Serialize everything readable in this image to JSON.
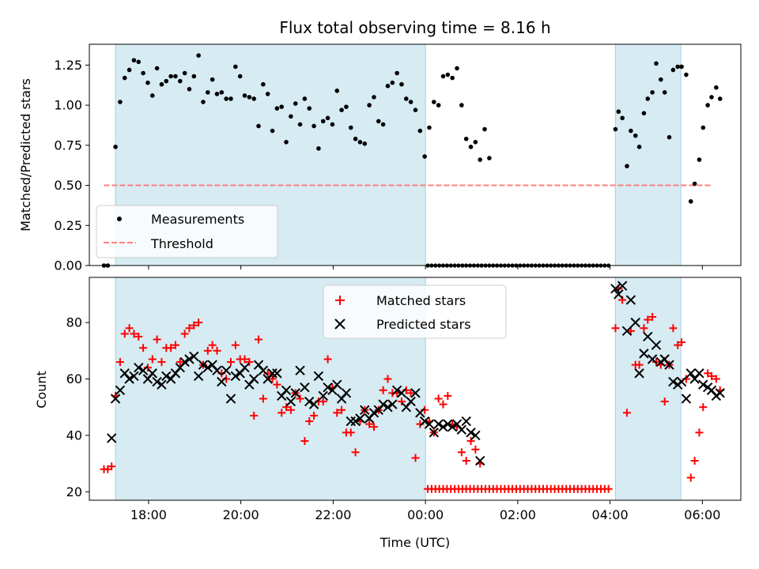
{
  "chart_data": [
    {
      "type": "scatter",
      "title": "Flux total observing time = 8.16 h",
      "xlabel": "",
      "ylabel": "Matched/Predicted stars",
      "xlim": [
        "16:43",
        "06:50"
      ],
      "ylim": [
        0,
        1.38
      ],
      "yticks": [
        "0.00",
        "0.25",
        "0.50",
        "0.75",
        "1.00",
        "1.25"
      ],
      "grid": false,
      "shaded_intervals": [
        [
          "17:17",
          "00:00"
        ],
        [
          "04:07",
          "05:32"
        ]
      ],
      "legend": {
        "position": "lower-left",
        "entries": [
          "Measurements",
          "Threshold"
        ]
      },
      "series": [
        {
          "name": "Measurements",
          "color": "#000000",
          "marker": "dot",
          "points": [
            [
              "17:02",
              0.0
            ],
            [
              "17:07",
              0.0
            ],
            [
              "17:17",
              0.74
            ],
            [
              "17:23",
              1.02
            ],
            [
              "17:29",
              1.17
            ],
            [
              "17:35",
              1.22
            ],
            [
              "17:41",
              1.28
            ],
            [
              "17:47",
              1.27
            ],
            [
              "17:53",
              1.2
            ],
            [
              "17:59",
              1.14
            ],
            [
              "18:05",
              1.06
            ],
            [
              "18:11",
              1.23
            ],
            [
              "18:17",
              1.13
            ],
            [
              "18:23",
              1.15
            ],
            [
              "18:29",
              1.18
            ],
            [
              "18:35",
              1.18
            ],
            [
              "18:41",
              1.15
            ],
            [
              "18:47",
              1.2
            ],
            [
              "18:53",
              1.1
            ],
            [
              "18:59",
              1.18
            ],
            [
              "19:05",
              1.31
            ],
            [
              "19:11",
              1.02
            ],
            [
              "19:17",
              1.08
            ],
            [
              "19:23",
              1.16
            ],
            [
              "19:29",
              1.07
            ],
            [
              "19:35",
              1.08
            ],
            [
              "19:41",
              1.04
            ],
            [
              "19:47",
              1.04
            ],
            [
              "19:53",
              1.24
            ],
            [
              "19:59",
              1.18
            ],
            [
              "20:05",
              1.06
            ],
            [
              "20:11",
              1.05
            ],
            [
              "20:17",
              1.04
            ],
            [
              "20:23",
              0.87
            ],
            [
              "20:29",
              1.13
            ],
            [
              "20:35",
              1.07
            ],
            [
              "20:41",
              0.84
            ],
            [
              "20:47",
              0.98
            ],
            [
              "20:53",
              0.99
            ],
            [
              "20:59",
              0.77
            ],
            [
              "21:05",
              0.93
            ],
            [
              "21:11",
              1.01
            ],
            [
              "21:17",
              0.88
            ],
            [
              "21:23",
              1.04
            ],
            [
              "21:29",
              0.98
            ],
            [
              "21:35",
              0.87
            ],
            [
              "21:41",
              0.73
            ],
            [
              "21:47",
              0.9
            ],
            [
              "21:53",
              0.92
            ],
            [
              "21:59",
              0.88
            ],
            [
              "22:05",
              1.09
            ],
            [
              "22:11",
              0.97
            ],
            [
              "22:17",
              0.99
            ],
            [
              "22:23",
              0.86
            ],
            [
              "22:29",
              0.79
            ],
            [
              "22:35",
              0.77
            ],
            [
              "22:41",
              0.76
            ],
            [
              "22:47",
              1.0
            ],
            [
              "22:53",
              1.05
            ],
            [
              "22:59",
              0.9
            ],
            [
              "23:05",
              0.88
            ],
            [
              "23:11",
              1.12
            ],
            [
              "23:17",
              1.14
            ],
            [
              "23:23",
              1.2
            ],
            [
              "23:29",
              1.13
            ],
            [
              "23:35",
              1.04
            ],
            [
              "23:41",
              1.02
            ],
            [
              "23:47",
              0.97
            ],
            [
              "23:53",
              0.84
            ],
            [
              "23:59",
              0.68
            ],
            [
              "00:05",
              0.86
            ],
            [
              "00:11",
              1.02
            ],
            [
              "00:17",
              1.0
            ],
            [
              "00:23",
              1.18
            ],
            [
              "00:29",
              1.19
            ],
            [
              "00:35",
              1.17
            ],
            [
              "00:41",
              1.23
            ],
            [
              "00:47",
              1.0
            ],
            [
              "00:53",
              0.79
            ],
            [
              "00:59",
              0.74
            ],
            [
              "01:05",
              0.77
            ],
            [
              "01:11",
              0.66
            ],
            [
              "01:17",
              0.85
            ],
            [
              "01:23",
              0.67
            ]
          ]
        },
        {
          "name": "Threshold",
          "color": "#ff7f7f",
          "style": "dashed",
          "points": [
            [
              "17:02",
              0.5
            ],
            [
              "06:12",
              0.5
            ]
          ]
        }
      ]
    },
    {
      "type": "scatter",
      "title": "",
      "xlabel": "Time (UTC)",
      "ylabel": "Count",
      "xlim": [
        "16:43",
        "06:50"
      ],
      "ylim": [
        17,
        96
      ],
      "xticks": [
        "18:00",
        "20:00",
        "22:00",
        "00:00",
        "02:00",
        "04:00",
        "06:00"
      ],
      "yticks": [
        "20",
        "40",
        "60",
        "80"
      ],
      "grid": false,
      "shaded_intervals": [
        [
          "17:17",
          "00:00"
        ],
        [
          "04:07",
          "05:32"
        ]
      ],
      "legend": {
        "position": "top-center",
        "entries": [
          "Matched stars",
          "Predicted stars"
        ]
      },
      "series": [
        {
          "name": "Matched stars",
          "color": "#ff0000",
          "marker": "plus",
          "points": [
            [
              "17:02",
              28
            ],
            [
              "17:07",
              28
            ],
            [
              "17:12",
              29
            ],
            [
              "17:17",
              54
            ],
            [
              "17:23",
              66
            ],
            [
              "17:29",
              76
            ],
            [
              "17:35",
              78
            ],
            [
              "17:41",
              76
            ],
            [
              "17:47",
              75
            ],
            [
              "17:53",
              71
            ],
            [
              "17:59",
              64
            ],
            [
              "18:05",
              67
            ],
            [
              "18:11",
              74
            ],
            [
              "18:17",
              66
            ],
            [
              "18:23",
              71
            ],
            [
              "18:29",
              71
            ],
            [
              "18:35",
              72
            ],
            [
              "18:41",
              66
            ],
            [
              "18:47",
              76
            ],
            [
              "18:53",
              78
            ],
            [
              "18:59",
              79
            ],
            [
              "19:05",
              80
            ],
            [
              "19:11",
              65
            ],
            [
              "19:17",
              70
            ],
            [
              "19:23",
              72
            ],
            [
              "19:29",
              70
            ],
            [
              "19:35",
              62
            ],
            [
              "19:41",
              60
            ],
            [
              "19:47",
              66
            ],
            [
              "19:53",
              72
            ],
            [
              "19:59",
              67
            ],
            [
              "20:05",
              67
            ],
            [
              "20:11",
              66
            ],
            [
              "20:17",
              47
            ],
            [
              "20:23",
              74
            ],
            [
              "20:29",
              53
            ],
            [
              "20:35",
              62
            ],
            [
              "20:41",
              60
            ],
            [
              "20:47",
              58
            ],
            [
              "20:53",
              48
            ],
            [
              "20:59",
              50
            ],
            [
              "21:05",
              49
            ],
            [
              "21:11",
              55
            ],
            [
              "21:17",
              53
            ],
            [
              "21:23",
              38
            ],
            [
              "21:29",
              45
            ],
            [
              "21:35",
              47
            ],
            [
              "21:41",
              52
            ],
            [
              "21:47",
              52
            ],
            [
              "21:53",
              67
            ],
            [
              "21:59",
              57
            ],
            [
              "22:05",
              48
            ],
            [
              "22:11",
              49
            ],
            [
              "22:17",
              41
            ],
            [
              "22:23",
              41
            ],
            [
              "22:29",
              34
            ],
            [
              "22:35",
              45
            ],
            [
              "22:41",
              49
            ],
            [
              "22:47",
              44
            ],
            [
              "22:53",
              43
            ],
            [
              "22:59",
              49
            ],
            [
              "23:05",
              56
            ],
            [
              "23:11",
              60
            ],
            [
              "23:17",
              55
            ],
            [
              "23:23",
              55
            ],
            [
              "23:29",
              52
            ],
            [
              "23:35",
              56
            ],
            [
              "23:41",
              55
            ],
            [
              "23:47",
              32
            ],
            [
              "23:53",
              44
            ],
            [
              "23:59",
              49
            ],
            [
              "00:05",
              45
            ],
            [
              "00:11",
              41
            ],
            [
              "00:17",
              53
            ],
            [
              "00:23",
              51
            ],
            [
              "00:29",
              54
            ],
            [
              "00:35",
              44
            ],
            [
              "00:41",
              43
            ],
            [
              "00:47",
              34
            ],
            [
              "00:53",
              31
            ],
            [
              "00:59",
              38
            ],
            [
              "01:05",
              35
            ],
            [
              "01:11",
              30
            ]
          ]
        },
        {
          "name": "Predicted stars",
          "color": "#000000",
          "marker": "x",
          "points": [
            [
              "17:12",
              39
            ],
            [
              "17:17",
              53
            ],
            [
              "17:23",
              56
            ],
            [
              "17:29",
              62
            ],
            [
              "17:35",
              60
            ],
            [
              "17:41",
              61
            ],
            [
              "17:47",
              64
            ],
            [
              "17:53",
              63
            ],
            [
              "17:59",
              60
            ],
            [
              "18:05",
              62
            ],
            [
              "18:11",
              59
            ],
            [
              "18:17",
              58
            ],
            [
              "18:23",
              61
            ],
            [
              "18:29",
              60
            ],
            [
              "18:35",
              62
            ],
            [
              "18:41",
              64
            ],
            [
              "18:47",
              66
            ],
            [
              "18:53",
              67
            ],
            [
              "18:59",
              68
            ],
            [
              "19:05",
              61
            ],
            [
              "19:11",
              65
            ],
            [
              "19:17",
              64
            ],
            [
              "19:23",
              65
            ],
            [
              "19:29",
              63
            ],
            [
              "19:35",
              59
            ],
            [
              "19:41",
              63
            ],
            [
              "19:47",
              53
            ],
            [
              "19:53",
              61
            ],
            [
              "19:59",
              62
            ],
            [
              "20:05",
              64
            ],
            [
              "20:11",
              58
            ],
            [
              "20:17",
              60
            ],
            [
              "20:23",
              65
            ],
            [
              "20:29",
              63
            ],
            [
              "20:35",
              60
            ],
            [
              "20:41",
              62
            ],
            [
              "20:47",
              62
            ],
            [
              "20:53",
              54
            ],
            [
              "20:59",
              56
            ],
            [
              "21:05",
              52
            ],
            [
              "21:11",
              55
            ],
            [
              "21:17",
              63
            ],
            [
              "21:23",
              57
            ],
            [
              "21:29",
              52
            ],
            [
              "21:35",
              51
            ],
            [
              "21:41",
              61
            ],
            [
              "21:47",
              54
            ],
            [
              "21:53",
              57
            ],
            [
              "21:59",
              56
            ],
            [
              "22:05",
              58
            ],
            [
              "22:11",
              53
            ],
            [
              "22:17",
              55
            ],
            [
              "22:23",
              45
            ],
            [
              "22:29",
              45
            ],
            [
              "22:35",
              46
            ],
            [
              "22:41",
              49
            ],
            [
              "22:47",
              46
            ],
            [
              "22:53",
              48
            ],
            [
              "22:59",
              49
            ],
            [
              "23:05",
              51
            ],
            [
              "23:11",
              50
            ],
            [
              "23:17",
              51
            ],
            [
              "23:23",
              56
            ],
            [
              "23:29",
              55
            ],
            [
              "23:35",
              50
            ],
            [
              "23:41",
              52
            ],
            [
              "23:47",
              55
            ],
            [
              "23:53",
              48
            ],
            [
              "23:59",
              45
            ],
            [
              "00:05",
              44
            ],
            [
              "00:11",
              41
            ],
            [
              "00:17",
              44
            ],
            [
              "00:23",
              43
            ],
            [
              "00:29",
              44
            ],
            [
              "00:35",
              43
            ],
            [
              "00:41",
              44
            ],
            [
              "00:47",
              42
            ],
            [
              "00:53",
              45
            ],
            [
              "00:59",
              41
            ],
            [
              "01:05",
              40
            ],
            [
              "01:11",
              31
            ]
          ]
        }
      ]
    }
  ]
}
